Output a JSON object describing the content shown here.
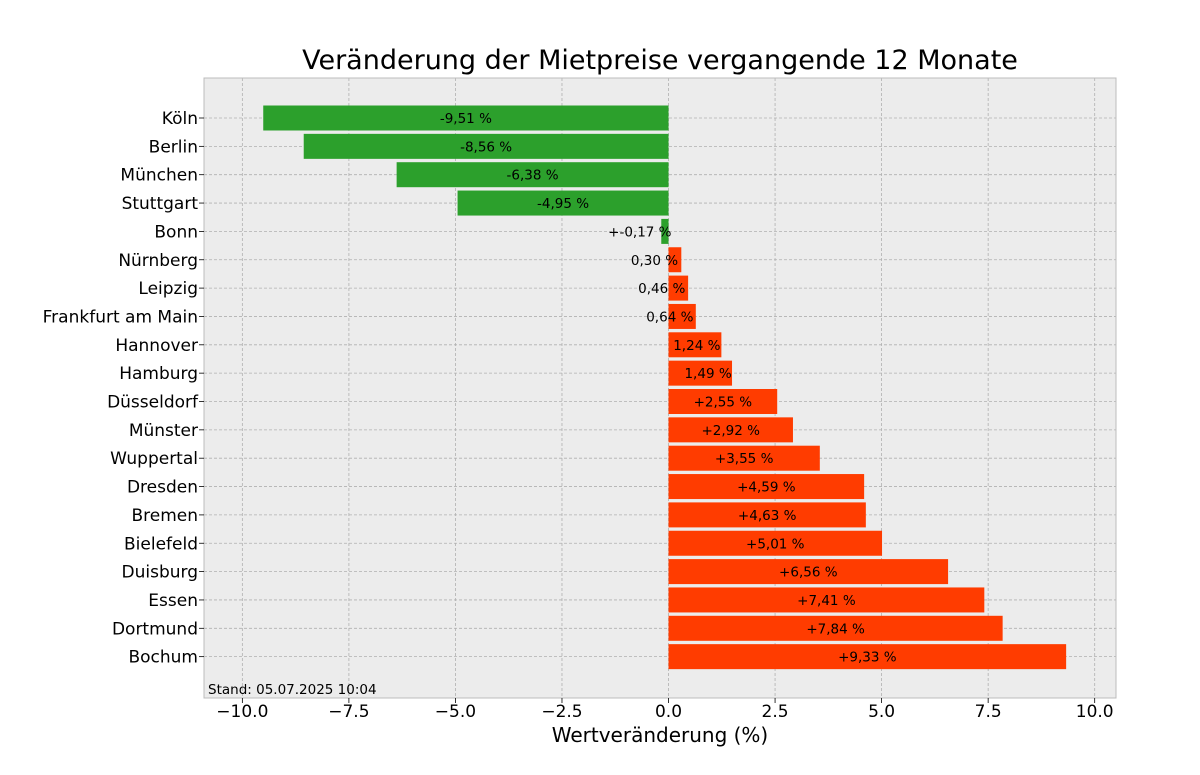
{
  "chart_data": {
    "type": "bar",
    "orientation": "horizontal",
    "title": "Veränderung der Mietpreise vergangende 12 Monate",
    "xlabel": "Wertveränderung (%)",
    "ylabel": "",
    "xlim": [
      -10.9,
      10.5
    ],
    "xticks": [
      -10,
      -7.5,
      -5,
      -2.5,
      0,
      2.5,
      5,
      7.5,
      10
    ],
    "xtick_labels": [
      "−10.0",
      "−7.5",
      "−5.0",
      "−2.5",
      "0.0",
      "2.5",
      "5.0",
      "7.5",
      "10.0"
    ],
    "grid": true,
    "categories": [
      "Köln",
      "Berlin",
      "München",
      "Stuttgart",
      "Bonn",
      "Nürnberg",
      "Leipzig",
      "Frankfurt am Main",
      "Hannover",
      "Hamburg",
      "Düsseldorf",
      "Münster",
      "Wuppertal",
      "Dresden",
      "Bremen",
      "Bielefeld",
      "Duisburg",
      "Essen",
      "Dortmund",
      "Bochum"
    ],
    "values": [
      -9.51,
      -8.56,
      -6.38,
      -4.95,
      -0.17,
      0.3,
      0.46,
      0.64,
      1.24,
      1.49,
      2.55,
      2.92,
      3.55,
      4.59,
      4.63,
      5.01,
      6.56,
      7.41,
      7.84,
      9.33
    ],
    "data_labels": [
      "-9,51 %",
      "-8,56 %",
      "-6,38 %",
      "-4,95 %",
      "+-0,17 %",
      "0,30 %",
      "0,46 %",
      "0,64 %",
      "1,24 %",
      "1,49 %",
      "+2,55 %",
      "+2,92 %",
      "+3,55 %",
      "+4,59 %",
      "+4,63 %",
      "+5,01 %",
      "+6,56 %",
      "+7,41 %",
      "+7,84 %",
      "+9,33 %"
    ],
    "annotation": "Stand: 05.07.2025 10:04",
    "colors": {
      "negative": "#2ca02c",
      "positive": "#ff3c00",
      "plot_background": "#ececec",
      "grid": "#b0b0b0",
      "frame": "#bcbcbc"
    }
  }
}
